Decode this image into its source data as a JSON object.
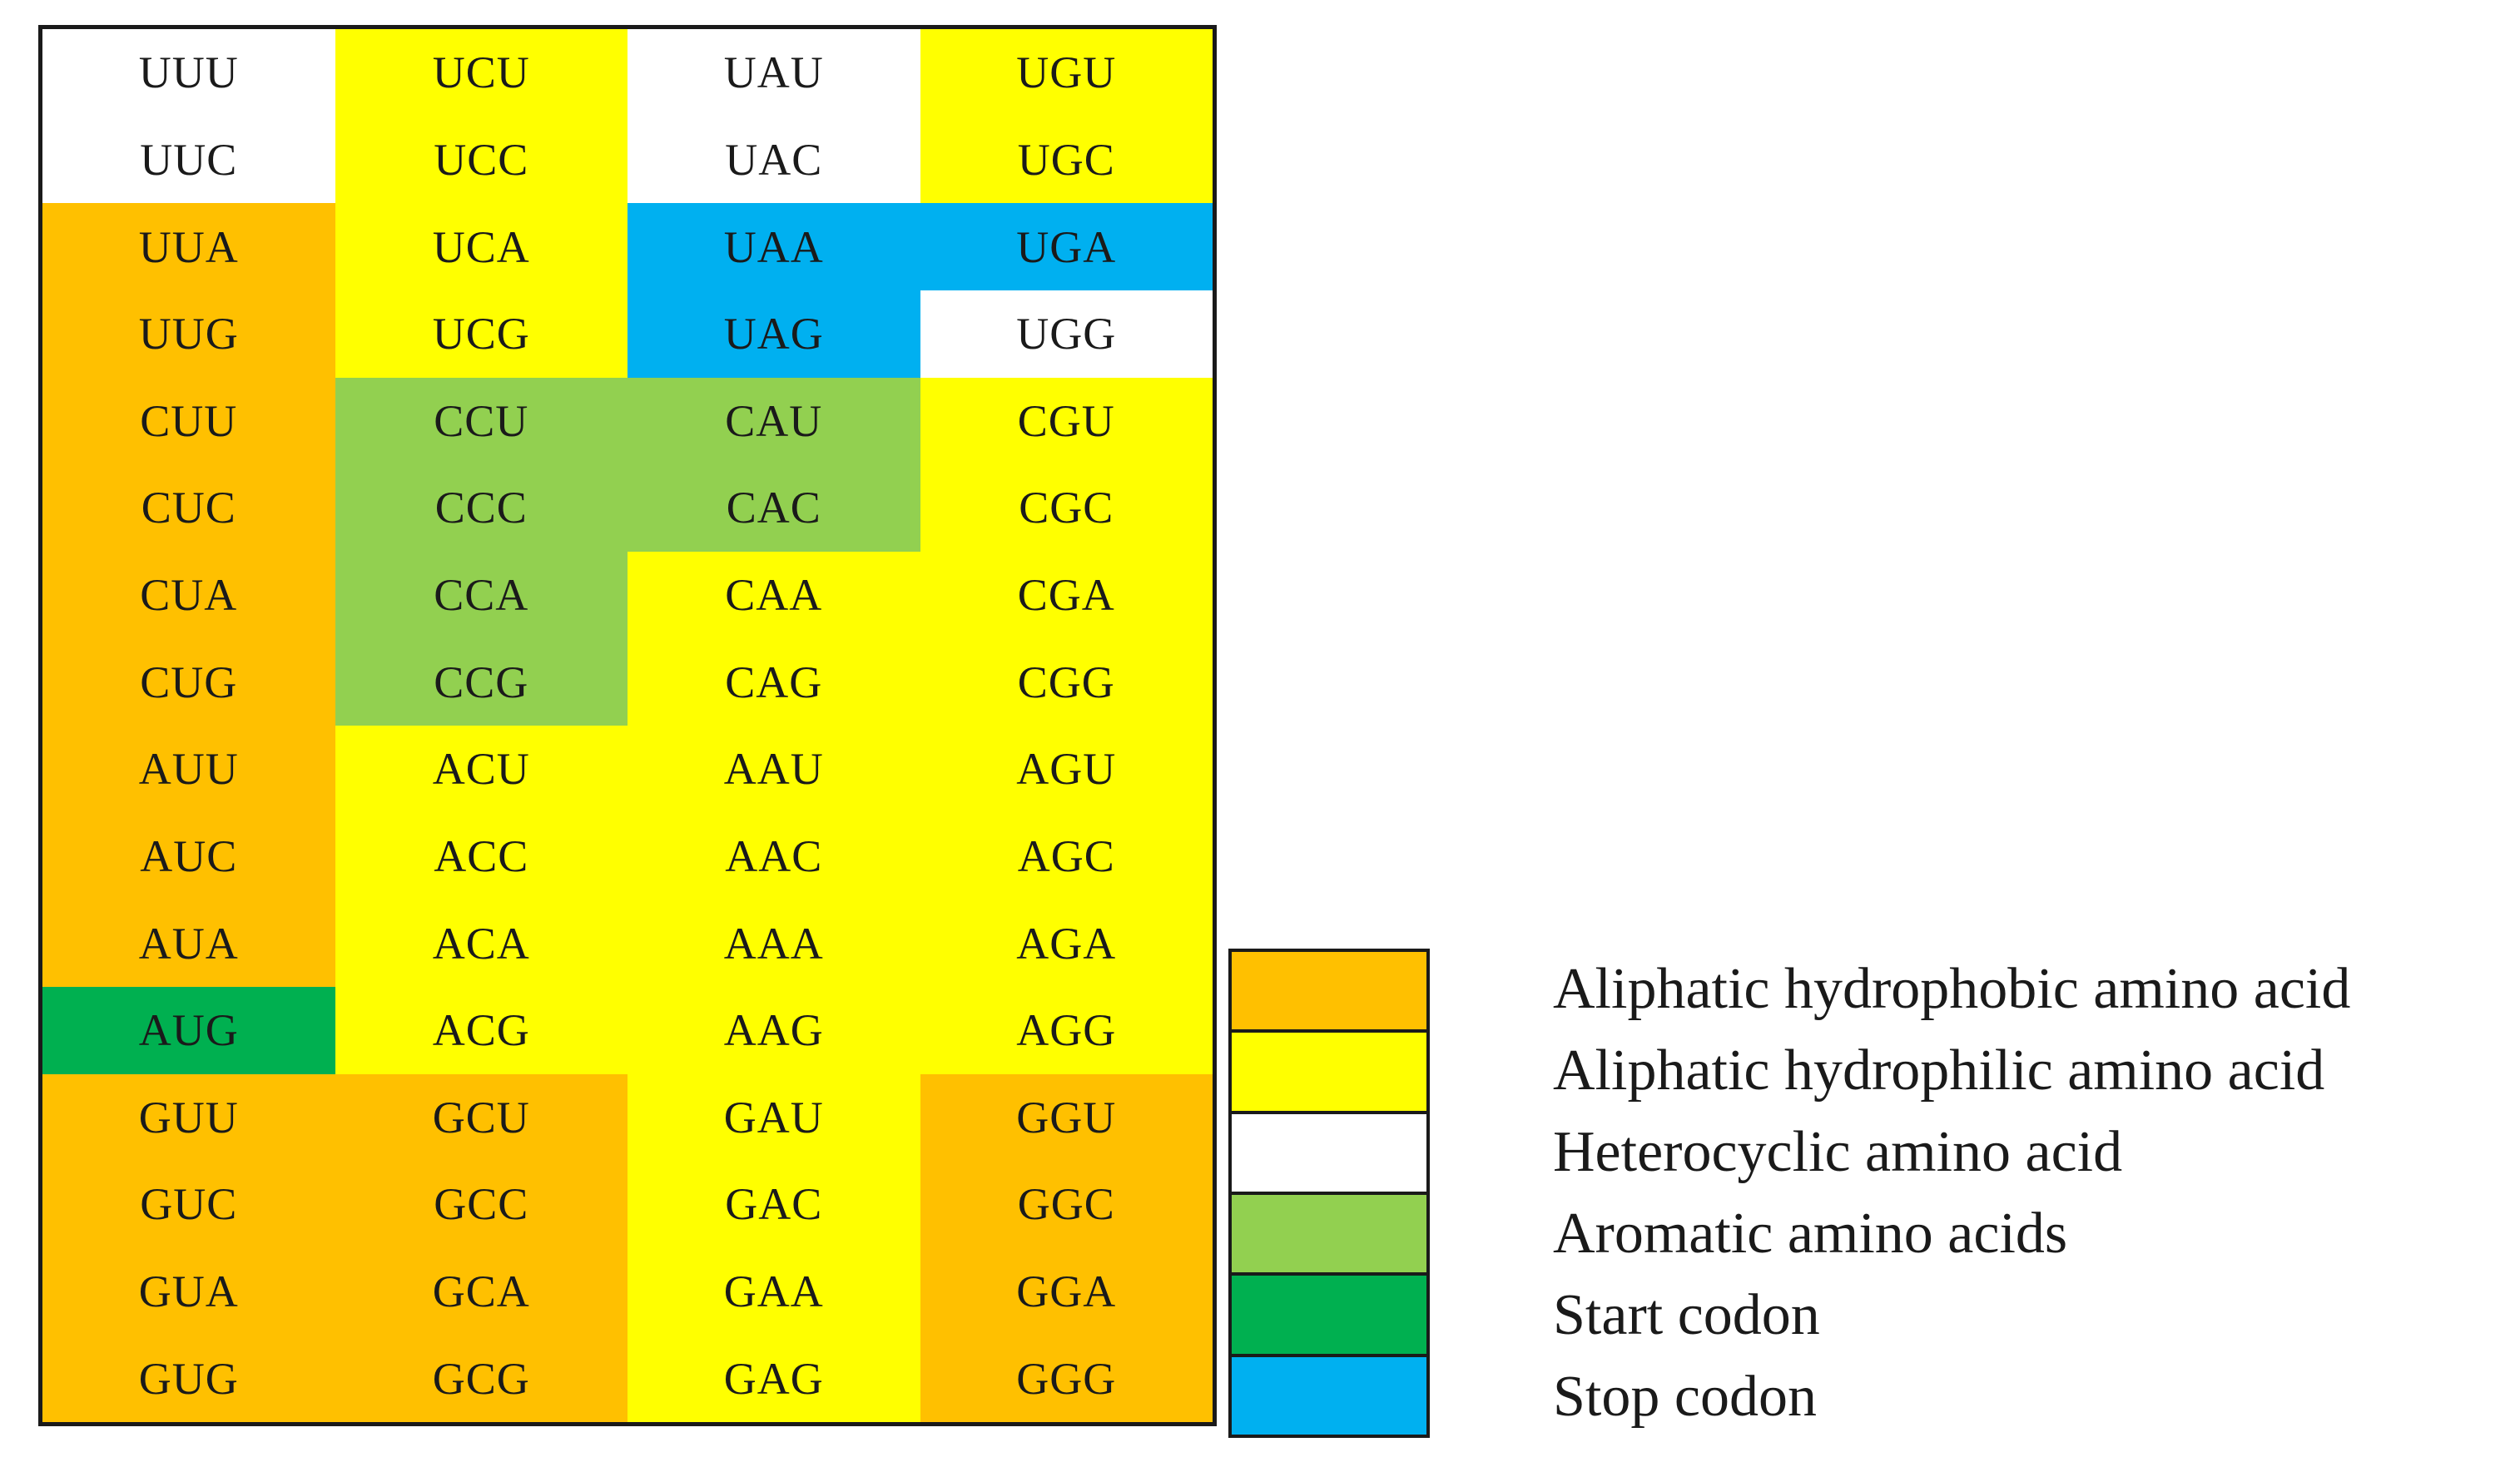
{
  "colors": {
    "aliphatic_hydrophobic": "#FFC000",
    "aliphatic_hydrophilic": "#FFFF00",
    "heterocyclic": "#FFFFFF",
    "aromatic": "#92D050",
    "start": "#00B050",
    "stop": "#00B0F0"
  },
  "codons": [
    {
      "codon": "UUU",
      "category": "heterocyclic"
    },
    {
      "codon": "UCU",
      "category": "aliphatic_hydrophilic"
    },
    {
      "codon": "UAU",
      "category": "heterocyclic"
    },
    {
      "codon": "UGU",
      "category": "aliphatic_hydrophilic"
    },
    {
      "codon": "UUC",
      "category": "heterocyclic"
    },
    {
      "codon": "UCC",
      "category": "aliphatic_hydrophilic"
    },
    {
      "codon": "UAC",
      "category": "heterocyclic"
    },
    {
      "codon": "UGC",
      "category": "aliphatic_hydrophilic"
    },
    {
      "codon": "UUA",
      "category": "aliphatic_hydrophobic"
    },
    {
      "codon": "UCA",
      "category": "aliphatic_hydrophilic"
    },
    {
      "codon": "UAA",
      "category": "stop"
    },
    {
      "codon": "UGA",
      "category": "stop"
    },
    {
      "codon": "UUG",
      "category": "aliphatic_hydrophobic"
    },
    {
      "codon": "UCG",
      "category": "aliphatic_hydrophilic"
    },
    {
      "codon": "UAG",
      "category": "stop"
    },
    {
      "codon": "UGG",
      "category": "heterocyclic"
    },
    {
      "codon": "CUU",
      "category": "aliphatic_hydrophobic"
    },
    {
      "codon": "CCU",
      "category": "aromatic"
    },
    {
      "codon": "CAU",
      "category": "aromatic"
    },
    {
      "codon": "CGU",
      "category": "aliphatic_hydrophilic"
    },
    {
      "codon": "CUC",
      "category": "aliphatic_hydrophobic"
    },
    {
      "codon": "CCC",
      "category": "aromatic"
    },
    {
      "codon": "CAC",
      "category": "aromatic"
    },
    {
      "codon": "CGC",
      "category": "aliphatic_hydrophilic"
    },
    {
      "codon": "CUA",
      "category": "aliphatic_hydrophobic"
    },
    {
      "codon": "CCA",
      "category": "aromatic"
    },
    {
      "codon": "CAA",
      "category": "aliphatic_hydrophilic"
    },
    {
      "codon": "CGA",
      "category": "aliphatic_hydrophilic"
    },
    {
      "codon": "CUG",
      "category": "aliphatic_hydrophobic"
    },
    {
      "codon": "CCG",
      "category": "aromatic"
    },
    {
      "codon": "CAG",
      "category": "aliphatic_hydrophilic"
    },
    {
      "codon": "CGG",
      "category": "aliphatic_hydrophilic"
    },
    {
      "codon": "AUU",
      "category": "aliphatic_hydrophobic"
    },
    {
      "codon": "ACU",
      "category": "aliphatic_hydrophilic"
    },
    {
      "codon": "AAU",
      "category": "aliphatic_hydrophilic"
    },
    {
      "codon": "AGU",
      "category": "aliphatic_hydrophilic"
    },
    {
      "codon": "AUC",
      "category": "aliphatic_hydrophobic"
    },
    {
      "codon": "ACC",
      "category": "aliphatic_hydrophilic"
    },
    {
      "codon": "AAC",
      "category": "aliphatic_hydrophilic"
    },
    {
      "codon": "AGC",
      "category": "aliphatic_hydrophilic"
    },
    {
      "codon": "AUA",
      "category": "aliphatic_hydrophobic"
    },
    {
      "codon": "ACA",
      "category": "aliphatic_hydrophilic"
    },
    {
      "codon": "AAA",
      "category": "aliphatic_hydrophilic"
    },
    {
      "codon": "AGA",
      "category": "aliphatic_hydrophilic"
    },
    {
      "codon": "AUG",
      "category": "start"
    },
    {
      "codon": "ACG",
      "category": "aliphatic_hydrophilic"
    },
    {
      "codon": "AAG",
      "category": "aliphatic_hydrophilic"
    },
    {
      "codon": "AGG",
      "category": "aliphatic_hydrophilic"
    },
    {
      "codon": "GUU",
      "category": "aliphatic_hydrophobic"
    },
    {
      "codon": "GCU",
      "category": "aliphatic_hydrophobic"
    },
    {
      "codon": "GAU",
      "category": "aliphatic_hydrophilic"
    },
    {
      "codon": "GGU",
      "category": "aliphatic_hydrophobic"
    },
    {
      "codon": "GUC",
      "category": "aliphatic_hydrophobic"
    },
    {
      "codon": "GCC",
      "category": "aliphatic_hydrophobic"
    },
    {
      "codon": "GAC",
      "category": "aliphatic_hydrophilic"
    },
    {
      "codon": "GGC",
      "category": "aliphatic_hydrophobic"
    },
    {
      "codon": "GUA",
      "category": "aliphatic_hydrophobic"
    },
    {
      "codon": "GCA",
      "category": "aliphatic_hydrophobic"
    },
    {
      "codon": "GAA",
      "category": "aliphatic_hydrophilic"
    },
    {
      "codon": "GGA",
      "category": "aliphatic_hydrophobic"
    },
    {
      "codon": "GUG",
      "category": "aliphatic_hydrophobic"
    },
    {
      "codon": "GCG",
      "category": "aliphatic_hydrophobic"
    },
    {
      "codon": "GAG",
      "category": "aliphatic_hydrophilic"
    },
    {
      "codon": "GGG",
      "category": "aliphatic_hydrophobic"
    }
  ],
  "legend": [
    {
      "category": "aliphatic_hydrophobic",
      "label": "Aliphatic hydrophobic amino acid"
    },
    {
      "category": "aliphatic_hydrophilic",
      "label": "Aliphatic hydrophilic amino acid"
    },
    {
      "category": "heterocyclic",
      "label": "Heterocyclic amino acid"
    },
    {
      "category": "aromatic",
      "label": "Aromatic amino acids"
    },
    {
      "category": "start",
      "label": "Start codon"
    },
    {
      "category": "stop",
      "label": "Stop codon"
    }
  ]
}
